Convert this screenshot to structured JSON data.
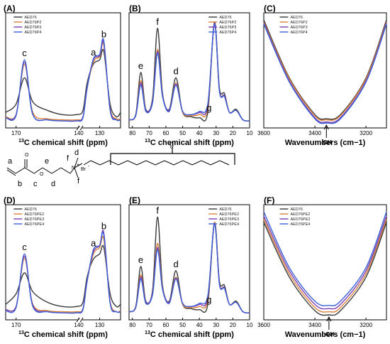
{
  "colors": [
    "#3a3a3a",
    "#d9823a",
    "#7a3fb0",
    "#3b5fd6",
    "#2aa77e"
  ],
  "structure": {
    "letters": [
      "a",
      "b",
      "c",
      "d",
      "e",
      "d",
      "f",
      "f",
      "g"
    ],
    "atoms": [
      "O",
      "O",
      "N",
      "+",
      "Br",
      "-"
    ]
  },
  "chart_data": [
    {
      "panel": "(A)",
      "type": "line",
      "xlabel_sup": "13",
      "xlabel": "C chemical shift (ppm)",
      "xlim": [
        175,
        120
      ],
      "axis_break": [
        140,
        138
      ],
      "xticks": [
        170,
        140,
        130
      ],
      "legend": [
        "AED76",
        "AED76P2",
        "AED76P3",
        "AED76P4"
      ],
      "peaks": [
        {
          "label": "c",
          "x": 166
        },
        {
          "label": "a",
          "x": 133
        },
        {
          "label": "b",
          "x": 128
        }
      ],
      "series": [
        {
          "name": "AED76",
          "x": [
            175,
            170,
            166,
            162,
            155,
            148,
            141,
            138,
            136,
            133,
            130,
            128,
            125,
            122,
            120
          ],
          "y": [
            0.12,
            0.2,
            0.45,
            0.22,
            0.14,
            0.1,
            0.1,
            0.14,
            0.4,
            0.58,
            0.62,
            0.7,
            0.2,
            0.08,
            0.12
          ]
        },
        {
          "name": "AED76P2",
          "x": [
            175,
            170,
            166,
            162,
            155,
            148,
            141,
            138,
            136,
            133,
            130,
            128,
            125,
            122,
            120
          ],
          "y": [
            0.08,
            0.1,
            0.58,
            0.12,
            0.06,
            0.05,
            0.05,
            0.08,
            0.35,
            0.6,
            0.65,
            0.76,
            0.16,
            0.06,
            0.06
          ]
        },
        {
          "name": "AED76P3",
          "x": [
            175,
            170,
            166,
            162,
            155,
            148,
            141,
            138,
            136,
            133,
            130,
            128,
            125,
            122,
            120
          ],
          "y": [
            0.07,
            0.1,
            0.6,
            0.1,
            0.05,
            0.04,
            0.04,
            0.08,
            0.36,
            0.62,
            0.66,
            0.78,
            0.15,
            0.05,
            0.05
          ]
        },
        {
          "name": "AED76P4",
          "x": [
            175,
            170,
            166,
            162,
            155,
            148,
            141,
            138,
            136,
            133,
            130,
            128,
            125,
            122,
            120
          ],
          "y": [
            0.07,
            0.09,
            0.62,
            0.1,
            0.05,
            0.04,
            0.04,
            0.07,
            0.35,
            0.63,
            0.67,
            0.8,
            0.14,
            0.05,
            0.05
          ]
        }
      ]
    },
    {
      "panel": "(B)",
      "type": "line",
      "xlabel_sup": "13",
      "xlabel": "C chemical shift (ppm)",
      "xlim": [
        82,
        10
      ],
      "xticks": [
        80,
        70,
        60,
        50,
        40,
        30,
        20,
        10
      ],
      "legend": [
        "AED76",
        "AED76P2",
        "AED76P3",
        "AED76P4"
      ],
      "peaks": [
        {
          "label": "e",
          "x": 75
        },
        {
          "label": "f",
          "x": 65
        },
        {
          "label": "d",
          "x": 54
        },
        {
          "label": "g",
          "x": 30
        }
      ],
      "series": [
        {
          "name": "AED76",
          "x": [
            82,
            78,
            75,
            72,
            68,
            65,
            62,
            58,
            54,
            50,
            45,
            40,
            35,
            31,
            28,
            25,
            22,
            18,
            14,
            10
          ],
          "y": [
            0.05,
            0.1,
            0.5,
            0.15,
            0.25,
            0.92,
            0.3,
            0.15,
            0.45,
            0.12,
            0.08,
            0.07,
            0.12,
            0.98,
            0.35,
            0.3,
            0.12,
            0.15,
            0.05,
            0.04
          ]
        },
        {
          "name": "AED76P2",
          "x": [
            82,
            78,
            75,
            72,
            68,
            65,
            62,
            58,
            54,
            50,
            45,
            40,
            35,
            31,
            28,
            25,
            22,
            18,
            14,
            10
          ],
          "y": [
            0.05,
            0.09,
            0.42,
            0.14,
            0.22,
            0.72,
            0.28,
            0.14,
            0.4,
            0.12,
            0.09,
            0.1,
            0.16,
            0.97,
            0.33,
            0.28,
            0.12,
            0.14,
            0.05,
            0.04
          ]
        },
        {
          "name": "AED76P3",
          "x": [
            82,
            78,
            75,
            72,
            68,
            65,
            62,
            58,
            54,
            50,
            45,
            40,
            35,
            31,
            28,
            25,
            22,
            18,
            14,
            10
          ],
          "y": [
            0.05,
            0.09,
            0.4,
            0.14,
            0.22,
            0.7,
            0.28,
            0.14,
            0.39,
            0.13,
            0.1,
            0.12,
            0.18,
            0.97,
            0.32,
            0.28,
            0.12,
            0.14,
            0.05,
            0.04
          ]
        },
        {
          "name": "AED76P4",
          "x": [
            82,
            78,
            75,
            72,
            68,
            65,
            62,
            58,
            54,
            50,
            45,
            40,
            35,
            31,
            28,
            25,
            22,
            18,
            14,
            10
          ],
          "y": [
            0.05,
            0.09,
            0.38,
            0.13,
            0.21,
            0.68,
            0.27,
            0.13,
            0.38,
            0.13,
            0.1,
            0.13,
            0.2,
            0.96,
            0.32,
            0.27,
            0.12,
            0.14,
            0.05,
            0.04
          ]
        }
      ]
    },
    {
      "panel": "(C)",
      "type": "line",
      "xlabel": "Wavenumbers (cm−1)",
      "xlim": [
        3600,
        3120
      ],
      "xticks": [
        3600,
        3400,
        3200
      ],
      "legend": [
        "AED76",
        "AED76P2",
        "AED76P3",
        "AED76P4"
      ],
      "annotation": {
        "label": "-OH",
        "x": 3355
      },
      "series": [
        {
          "name": "AED76",
          "x": [
            3600,
            3500,
            3400,
            3355,
            3300,
            3200,
            3120
          ],
          "y": [
            1.0,
            0.45,
            0.1,
            0.06,
            0.1,
            0.45,
            1.0
          ]
        },
        {
          "name": "AED76P2",
          "x": [
            3600,
            3500,
            3400,
            3355,
            3300,
            3200,
            3120
          ],
          "y": [
            0.98,
            0.44,
            0.09,
            0.05,
            0.09,
            0.44,
            0.98
          ]
        },
        {
          "name": "AED76P3",
          "x": [
            3600,
            3500,
            3400,
            3355,
            3300,
            3200,
            3120
          ],
          "y": [
            0.97,
            0.42,
            0.07,
            0.03,
            0.07,
            0.42,
            0.97
          ]
        },
        {
          "name": "AED76P4",
          "x": [
            3600,
            3500,
            3400,
            3355,
            3300,
            3200,
            3120
          ],
          "y": [
            0.96,
            0.41,
            0.06,
            0.02,
            0.06,
            0.41,
            0.96
          ]
        }
      ]
    },
    {
      "panel": "(D)",
      "type": "line",
      "xlabel_sup": "13",
      "xlabel": "C chemical shift (ppm)",
      "xlim": [
        175,
        120
      ],
      "axis_break": [
        140,
        138
      ],
      "xticks": [
        170,
        140,
        130
      ],
      "legend": [
        "AED76",
        "AED76PE2",
        "AED76PE3",
        "AED76PE4"
      ],
      "peaks": [
        {
          "label": "c",
          "x": 166
        },
        {
          "label": "a",
          "x": 133
        },
        {
          "label": "b",
          "x": 128
        }
      ],
      "series": [
        {
          "name": "AED76",
          "x": [
            175,
            170,
            166,
            162,
            155,
            148,
            141,
            138,
            136,
            133,
            130,
            128,
            125,
            122,
            120
          ],
          "y": [
            0.12,
            0.22,
            0.42,
            0.24,
            0.14,
            0.1,
            0.1,
            0.14,
            0.38,
            0.55,
            0.6,
            0.66,
            0.22,
            0.1,
            0.12
          ]
        },
        {
          "name": "AED76PE2",
          "x": [
            175,
            170,
            166,
            162,
            155,
            148,
            141,
            138,
            136,
            133,
            130,
            128,
            125,
            122,
            120
          ],
          "y": [
            0.07,
            0.1,
            0.56,
            0.12,
            0.06,
            0.05,
            0.05,
            0.08,
            0.34,
            0.6,
            0.66,
            0.74,
            0.15,
            0.05,
            0.06
          ]
        },
        {
          "name": "AED76PE3",
          "x": [
            175,
            170,
            166,
            162,
            155,
            148,
            141,
            138,
            136,
            133,
            130,
            128,
            125,
            122,
            120
          ],
          "y": [
            0.07,
            0.1,
            0.58,
            0.11,
            0.05,
            0.04,
            0.04,
            0.08,
            0.35,
            0.62,
            0.68,
            0.8,
            0.14,
            0.05,
            0.05
          ]
        },
        {
          "name": "AED76PE4",
          "x": [
            175,
            170,
            166,
            162,
            155,
            148,
            141,
            138,
            136,
            133,
            130,
            128,
            125,
            122,
            120
          ],
          "y": [
            0.06,
            0.09,
            0.6,
            0.1,
            0.05,
            0.04,
            0.04,
            0.07,
            0.34,
            0.64,
            0.68,
            0.78,
            0.13,
            0.05,
            0.05
          ]
        }
      ]
    },
    {
      "panel": "(E)",
      "type": "line",
      "xlabel_sup": "13",
      "xlabel": "C chemical shift (ppm)",
      "xlim": [
        82,
        10
      ],
      "xticks": [
        80,
        70,
        60,
        50,
        40,
        30,
        20,
        10
      ],
      "legend": [
        "AED76",
        "AED76PE2",
        "AED76PE3",
        "AED76PE4"
      ],
      "peaks": [
        {
          "label": "e",
          "x": 75
        },
        {
          "label": "f",
          "x": 65
        },
        {
          "label": "d",
          "x": 54
        },
        {
          "label": "g",
          "x": 30
        }
      ],
      "series": [
        {
          "name": "AED76",
          "x": [
            82,
            78,
            75,
            72,
            68,
            65,
            62,
            58,
            54,
            50,
            45,
            40,
            35,
            31,
            28,
            25,
            22,
            18,
            14,
            10
          ],
          "y": [
            0.05,
            0.1,
            0.48,
            0.15,
            0.25,
            0.95,
            0.3,
            0.15,
            0.44,
            0.12,
            0.08,
            0.07,
            0.12,
            0.9,
            0.34,
            0.3,
            0.12,
            0.15,
            0.05,
            0.04
          ]
        },
        {
          "name": "AED76PE2",
          "x": [
            82,
            78,
            75,
            72,
            68,
            65,
            62,
            58,
            54,
            50,
            45,
            40,
            35,
            31,
            28,
            25,
            22,
            18,
            14,
            10
          ],
          "y": [
            0.05,
            0.09,
            0.4,
            0.14,
            0.22,
            0.7,
            0.28,
            0.14,
            0.38,
            0.12,
            0.09,
            0.1,
            0.16,
            0.9,
            0.32,
            0.28,
            0.12,
            0.14,
            0.05,
            0.04
          ]
        },
        {
          "name": "AED76PE3",
          "x": [
            82,
            78,
            75,
            72,
            68,
            65,
            62,
            58,
            54,
            50,
            45,
            40,
            35,
            31,
            28,
            25,
            22,
            18,
            14,
            10
          ],
          "y": [
            0.05,
            0.09,
            0.38,
            0.14,
            0.22,
            0.66,
            0.27,
            0.14,
            0.37,
            0.13,
            0.1,
            0.12,
            0.18,
            0.89,
            0.31,
            0.28,
            0.12,
            0.14,
            0.05,
            0.04
          ]
        },
        {
          "name": "AED76PE4",
          "x": [
            82,
            78,
            75,
            72,
            68,
            65,
            62,
            58,
            54,
            50,
            45,
            40,
            35,
            31,
            28,
            25,
            22,
            18,
            14,
            10
          ],
          "y": [
            0.05,
            0.09,
            0.36,
            0.13,
            0.21,
            0.64,
            0.26,
            0.13,
            0.36,
            0.13,
            0.1,
            0.13,
            0.2,
            0.88,
            0.31,
            0.27,
            0.12,
            0.14,
            0.05,
            0.04
          ]
        }
      ]
    },
    {
      "panel": "(F)",
      "type": "line",
      "xlabel": "Wavenumbers (cm−1)",
      "xlim": [
        3600,
        3120
      ],
      "xticks": [
        3600,
        3400,
        3200
      ],
      "legend": [
        "AED76",
        "AED76PE2",
        "AED76PE3",
        "AED76PE4"
      ],
      "annotation": {
        "label": "-OH",
        "x": 3345
      },
      "series": [
        {
          "name": "AED76",
          "x": [
            3600,
            3500,
            3400,
            3345,
            3300,
            3200,
            3120
          ],
          "y": [
            0.9,
            0.38,
            0.06,
            0.02,
            0.06,
            0.38,
            0.9
          ]
        },
        {
          "name": "AED76PE2",
          "x": [
            3600,
            3500,
            3400,
            3345,
            3300,
            3200,
            3120
          ],
          "y": [
            0.93,
            0.41,
            0.09,
            0.05,
            0.09,
            0.41,
            0.93
          ]
        },
        {
          "name": "AED76PE3",
          "x": [
            3600,
            3500,
            3400,
            3345,
            3300,
            3200,
            3120
          ],
          "y": [
            0.96,
            0.44,
            0.12,
            0.08,
            0.12,
            0.44,
            0.96
          ]
        },
        {
          "name": "AED76PE4",
          "x": [
            3600,
            3500,
            3400,
            3345,
            3300,
            3200,
            3120
          ],
          "y": [
            1.0,
            0.47,
            0.15,
            0.11,
            0.15,
            0.47,
            1.0
          ]
        }
      ]
    }
  ]
}
